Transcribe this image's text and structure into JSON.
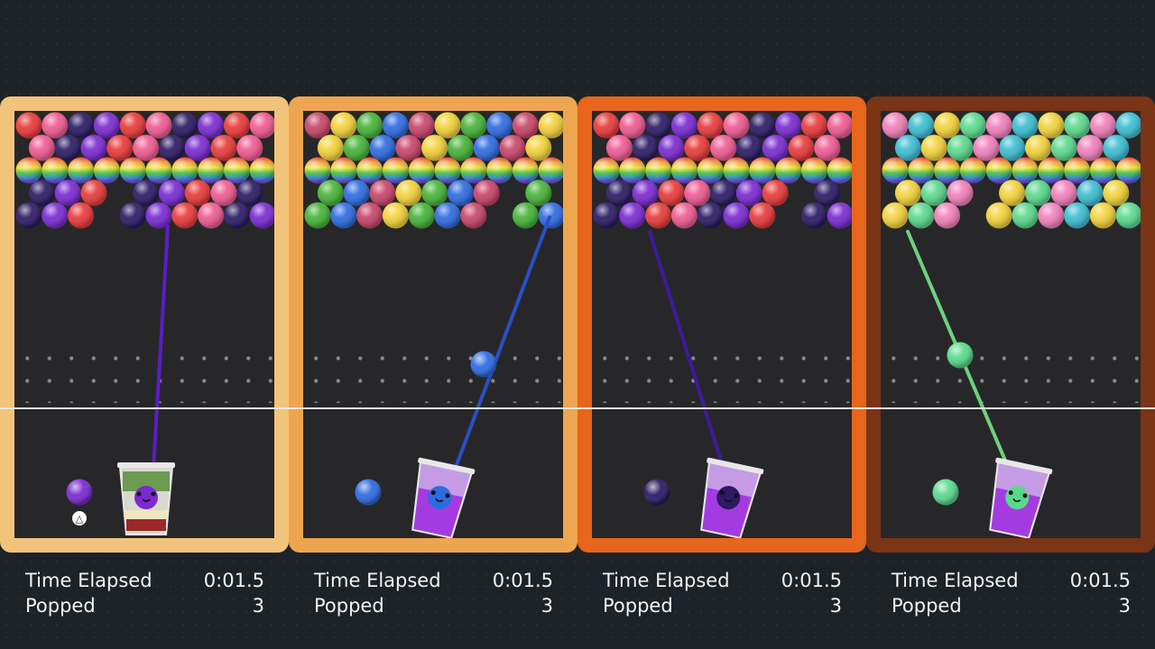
{
  "colors": {
    "red": "#e83a3a",
    "pink": "#ef5a92",
    "navy": "#2b1a64",
    "purple": "#7a2ad1",
    "yellow": "#f2d23a",
    "green": "#46b337",
    "blue": "#2e6be0",
    "rose": "#c84469",
    "ltpink": "#f280bc",
    "cyan": "#3cbdd2",
    "mint": "#5ad98d",
    "lime": "#bde044"
  },
  "panels": [
    {
      "id": "p1",
      "frame_color": "#f2c37b",
      "rows": [
        [
          "red",
          "pink",
          "navy",
          "purple",
          "red",
          "pink",
          "navy",
          "purple",
          "red",
          "pink"
        ],
        [
          "pink",
          "navy",
          "purple",
          "red",
          "pink",
          "navy",
          "purple",
          "red",
          "pink"
        ],
        [
          "rainbow",
          "rainbow",
          "rainbow",
          "rainbow",
          "rainbow",
          "rainbow",
          "rainbow",
          "rainbow",
          "rainbow",
          "rainbow"
        ],
        [
          "navy",
          "purple",
          "red",
          "",
          "navy",
          "purple",
          "red",
          "pink",
          "navy"
        ],
        [
          "navy",
          "purple",
          "red",
          "",
          "navy",
          "purple",
          "red",
          "pink",
          "navy",
          "purple"
        ]
      ],
      "aim_color": "#5b1ec4",
      "shot_color": "purple",
      "next_color": "purple",
      "cup_style": "layered",
      "time_label": "Time Elapsed",
      "time_value": "0:01.5",
      "popped_label": "Popped",
      "popped_value": "3",
      "button_hint": "△"
    },
    {
      "id": "p2",
      "frame_color": "#eea54f",
      "rows": [
        [
          "rose",
          "yellow",
          "green",
          "blue",
          "rose",
          "yellow",
          "green",
          "blue",
          "rose",
          "yellow"
        ],
        [
          "yellow",
          "green",
          "blue",
          "rose",
          "yellow",
          "green",
          "blue",
          "rose",
          "yellow"
        ],
        [
          "rainbow",
          "rainbow",
          "rainbow",
          "rainbow",
          "rainbow",
          "rainbow",
          "rainbow",
          "rainbow",
          "rainbow",
          "rainbow"
        ],
        [
          "green",
          "blue",
          "rose",
          "yellow",
          "green",
          "blue",
          "rose",
          "",
          "green"
        ],
        [
          "green",
          "blue",
          "rose",
          "yellow",
          "green",
          "blue",
          "rose",
          "",
          "green",
          "blue"
        ]
      ],
      "aim_color": "#2a4fc6",
      "shot_color": "blue",
      "next_color": "blue",
      "cup_style": "purple",
      "time_label": "Time Elapsed",
      "time_value": "0:01.5",
      "popped_label": "Popped",
      "popped_value": "3"
    },
    {
      "id": "p3",
      "frame_color": "#e7651c",
      "rows": [
        [
          "red",
          "pink",
          "navy",
          "purple",
          "red",
          "pink",
          "navy",
          "purple",
          "red",
          "pink"
        ],
        [
          "pink",
          "navy",
          "purple",
          "red",
          "pink",
          "navy",
          "purple",
          "red",
          "pink"
        ],
        [
          "rainbow",
          "rainbow",
          "rainbow",
          "rainbow",
          "rainbow",
          "rainbow",
          "rainbow",
          "rainbow",
          "rainbow",
          "rainbow"
        ],
        [
          "navy",
          "purple",
          "red",
          "pink",
          "navy",
          "purple",
          "red",
          "",
          "navy"
        ],
        [
          "navy",
          "purple",
          "red",
          "pink",
          "navy",
          "purple",
          "red",
          "",
          "navy",
          "purple"
        ]
      ],
      "aim_color": "#3d1a9a",
      "shot_color": "navy",
      "next_color": "navy",
      "cup_style": "purple",
      "time_label": "Time Elapsed",
      "time_value": "0:01.5",
      "popped_label": "Popped",
      "popped_value": "3"
    },
    {
      "id": "p4",
      "frame_color": "#7a3416",
      "rows": [
        [
          "ltpink",
          "cyan",
          "yellow",
          "mint",
          "ltpink",
          "cyan",
          "yellow",
          "mint",
          "ltpink",
          "cyan"
        ],
        [
          "cyan",
          "yellow",
          "mint",
          "ltpink",
          "cyan",
          "yellow",
          "mint",
          "ltpink",
          "cyan"
        ],
        [
          "rainbow",
          "rainbow",
          "rainbow",
          "rainbow",
          "rainbow",
          "rainbow",
          "rainbow",
          "rainbow",
          "rainbow",
          "rainbow"
        ],
        [
          "yellow",
          "mint",
          "ltpink",
          "",
          "yellow",
          "mint",
          "ltpink",
          "cyan",
          "yellow"
        ],
        [
          "yellow",
          "mint",
          "ltpink",
          "",
          "yellow",
          "mint",
          "ltpink",
          "cyan",
          "yellow",
          "mint"
        ]
      ],
      "aim_color": "#6fd07c",
      "shot_color": "mint",
      "next_color": "mint",
      "cup_style": "purple",
      "time_label": "Time Elapsed",
      "time_value": "0:01.5",
      "popped_label": "Popped",
      "popped_value": "3"
    }
  ]
}
